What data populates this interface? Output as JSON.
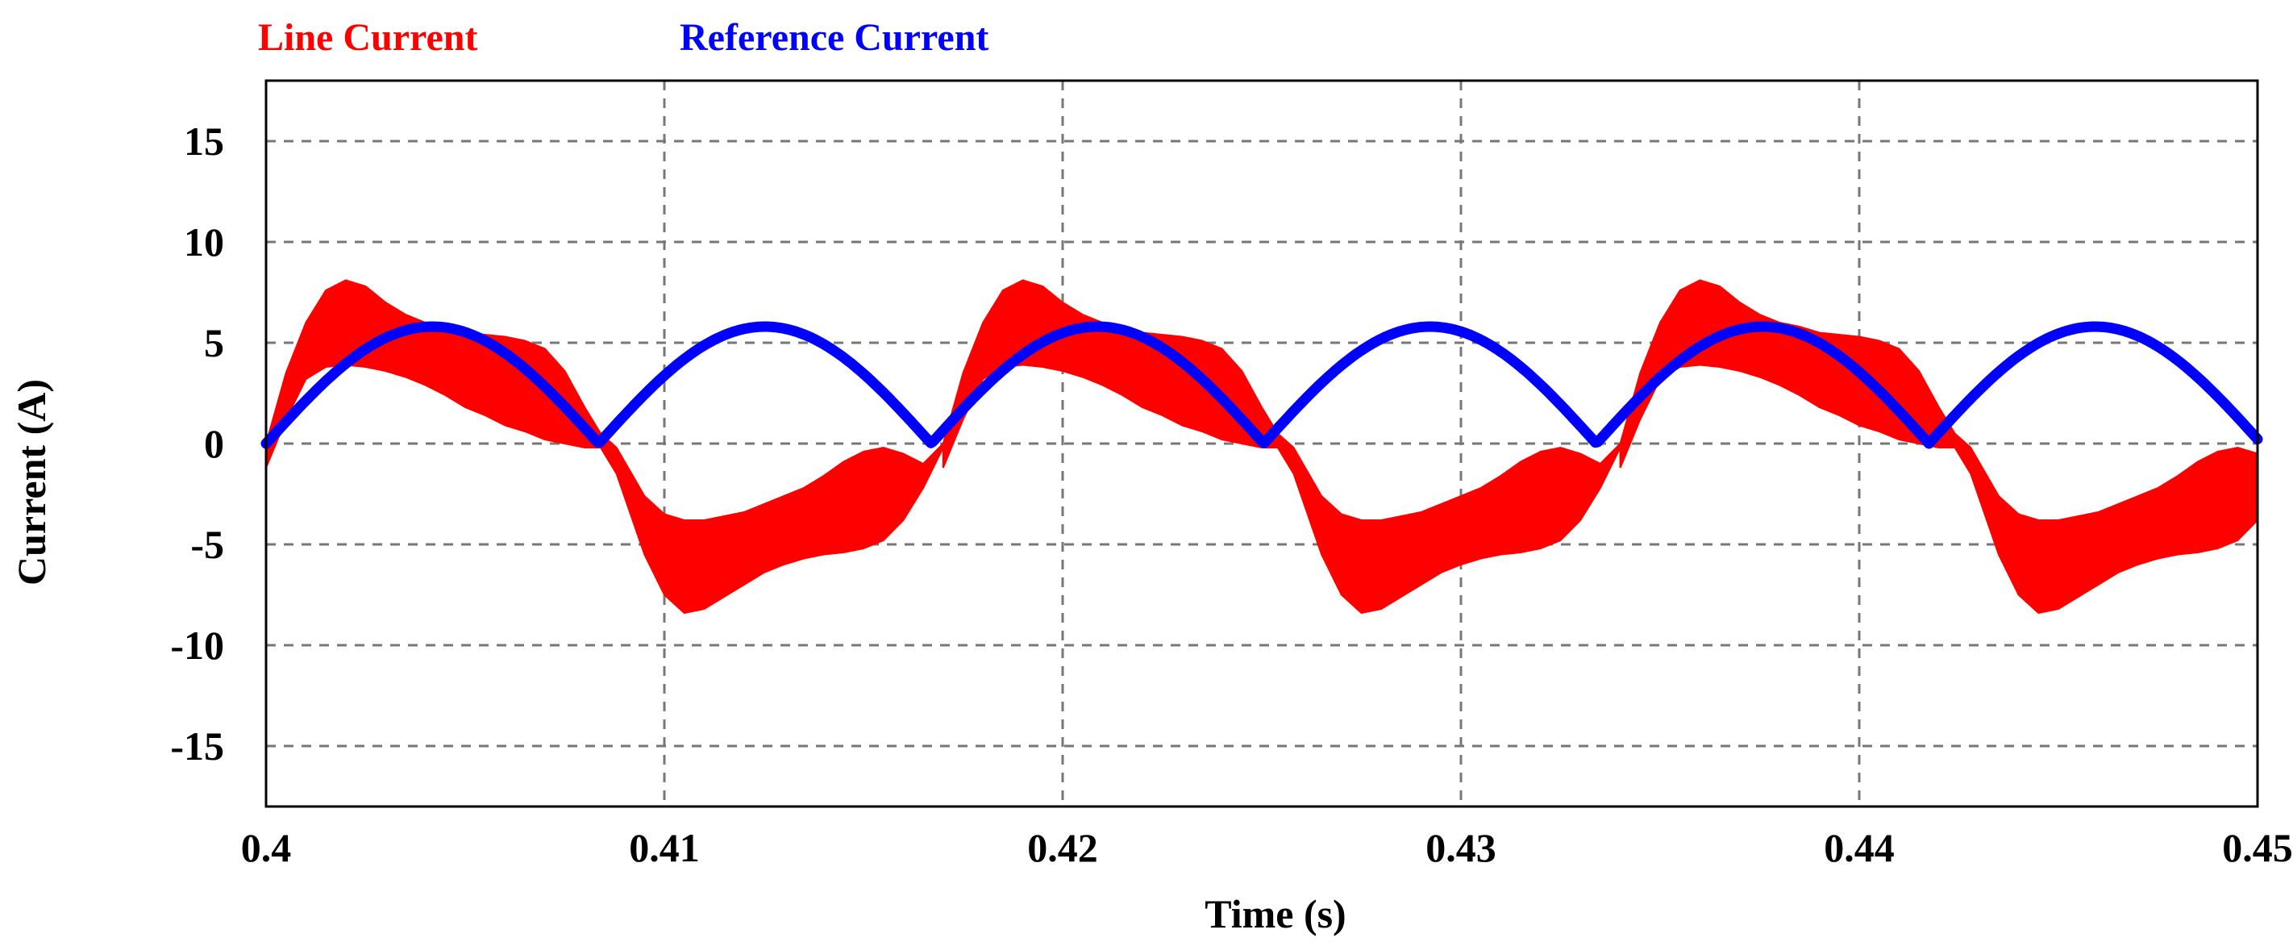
{
  "chart_data": {
    "type": "line",
    "title": "",
    "xlabel": "Time (s)",
    "ylabel": "Current (A)",
    "xlim": [
      0.4,
      0.45
    ],
    "ylim": [
      -18,
      18
    ],
    "x_ticks": [
      0.4,
      0.41,
      0.42,
      0.43,
      0.44,
      0.45
    ],
    "x_tick_labels": [
      "0.4",
      "0.41",
      "0.42",
      "0.43",
      "0.44",
      "0.45"
    ],
    "y_ticks": [
      15,
      10,
      5,
      0,
      -5,
      -10,
      -15
    ],
    "y_tick_labels": [
      "15",
      "10",
      "5",
      "0",
      "-5",
      "-10",
      "-15"
    ],
    "grid": true,
    "legend_position": "top-left",
    "series": [
      {
        "name": "Line Current",
        "color": "#ff0000",
        "style": "band",
        "x": [
          0.4,
          0.4005,
          0.401,
          0.4015,
          0.402,
          0.4025,
          0.403,
          0.4035,
          0.404,
          0.4045,
          0.405,
          0.4055,
          0.406,
          0.4065,
          0.407,
          0.4075,
          0.408,
          0.4084,
          0.4088,
          0.4095,
          0.41,
          0.4105,
          0.411,
          0.4115,
          0.412,
          0.4125,
          0.413,
          0.4135,
          0.414,
          0.4145,
          0.415,
          0.4155,
          0.416,
          0.4165,
          0.417
        ],
        "upper": [
          0.0,
          3.5,
          6.0,
          7.6,
          8.1,
          7.8,
          7.0,
          6.4,
          6.0,
          5.8,
          5.5,
          5.4,
          5.3,
          5.1,
          4.7,
          3.6,
          1.8,
          0.5,
          -0.2,
          -2.6,
          -3.5,
          -3.8,
          -3.8,
          -3.6,
          -3.4,
          -3.0,
          -2.6,
          -2.2,
          -1.6,
          -0.9,
          -0.4,
          -0.2,
          -0.5,
          -1.0,
          0.0
        ],
        "lower": [
          -1.2,
          1.2,
          3.2,
          3.8,
          3.9,
          3.8,
          3.6,
          3.3,
          2.9,
          2.4,
          1.8,
          1.4,
          0.9,
          0.6,
          0.2,
          0.0,
          -0.2,
          -0.2,
          -1.5,
          -5.5,
          -7.5,
          -8.4,
          -8.2,
          -7.6,
          -7.0,
          -6.4,
          -6.0,
          -5.7,
          -5.5,
          -5.4,
          -5.2,
          -4.8,
          -3.8,
          -2.2,
          -0.2
        ]
      },
      {
        "name": "Reference Current",
        "color": "#0000ff",
        "style": "line",
        "waveform": "abs_sine",
        "amplitude": 5.8,
        "half_period": 0.00835,
        "x_start": 0.4,
        "x_end": 0.45
      }
    ]
  }
}
